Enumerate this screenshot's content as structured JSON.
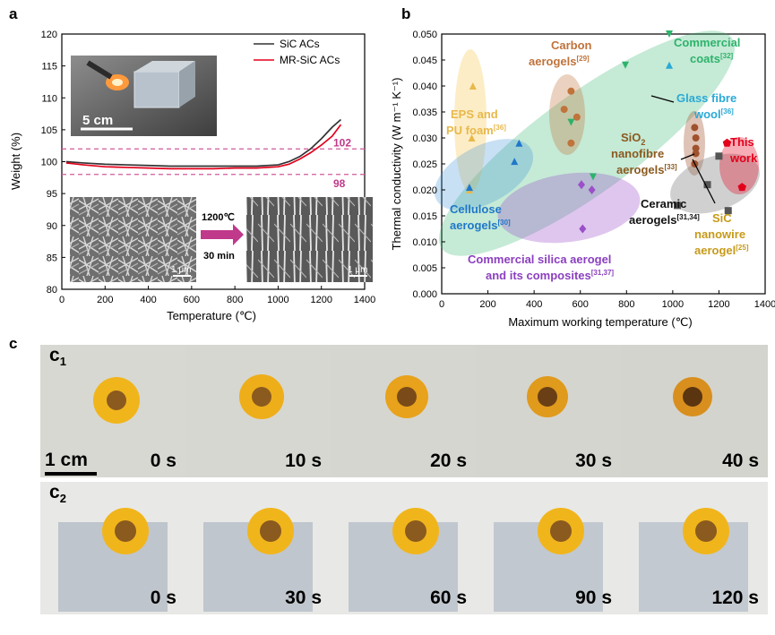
{
  "panels": {
    "a": "a",
    "b": "b",
    "c": "c"
  },
  "panel_a": {
    "ylabel": "Weight (%)",
    "xlabel": "Temperature (℃)",
    "legend": [
      "SiC ACs",
      "MR-SiC ACs"
    ],
    "ref_labels": [
      "102",
      "98"
    ],
    "inset_photo_scale": "5 cm",
    "sem_scale_left": "1 μm",
    "sem_scale_right": "1 μm",
    "treatment_line1": "1200℃",
    "treatment_line2": "30 min"
  },
  "panel_b": {
    "ylabel": "Thermal conductivity (W m⁻¹ K⁻¹)",
    "xlabel": "Maximum working temperature (℃)",
    "labels": {
      "carbon1": "Carbon",
      "carbon2": "aerogels",
      "carbon_ref": "[29]",
      "coats1": "Commercial",
      "coats2": "coats",
      "coats_ref": "[32]",
      "glass1": "Glass fibre",
      "glass2": "wool",
      "glass_ref": "[36]",
      "eps1": "EPS and",
      "eps2": "PU foam",
      "eps_ref": "[36]",
      "sio2_1": "SiO",
      "sio2_sub": "2",
      "sio2_2": "nanofibre",
      "sio2_3": "aerogels",
      "sio2_ref": "[33]",
      "this1": "This",
      "this2": "work",
      "cell1": "Cellulose",
      "cell2": "aerogels",
      "cell_ref": "[30]",
      "cer1": "Ceramic",
      "cer2": "aerogels",
      "cer_ref": "[31,34]",
      "sic1": "SiC",
      "sic2": "nanowire",
      "sic3": "aerogel",
      "sic_ref": "[25]",
      "silica1": "Commercial silica aerogel",
      "silica2": "and its composites",
      "silica_ref": "[31,37]"
    }
  },
  "panel_c": {
    "row1_label": "c",
    "row1_sub": "1",
    "row2_label": "c",
    "row2_sub": "2",
    "scale_bar": "1 cm",
    "row1_times": [
      "0 s",
      "10 s",
      "20 s",
      "30 s",
      "40 s"
    ],
    "row2_times": [
      "0 s",
      "30 s",
      "60 s",
      "90 s",
      "120 s"
    ]
  },
  "chart_data": [
    {
      "type": "line",
      "x": [
        20,
        100,
        200,
        300,
        400,
        500,
        600,
        700,
        800,
        900,
        1000,
        1050,
        1100,
        1150,
        1200,
        1250,
        1290
      ],
      "series": [
        {
          "name": "SiC ACs",
          "color": "#333333",
          "values": [
            100.0,
            99.8,
            99.6,
            99.5,
            99.4,
            99.3,
            99.3,
            99.3,
            99.3,
            99.3,
            99.5,
            100.0,
            100.8,
            102.0,
            103.6,
            105.4,
            106.6
          ]
        },
        {
          "name": "MR-SiC ACs",
          "color": "#e3001b",
          "values": [
            99.8,
            99.5,
            99.2,
            99.1,
            99.0,
            98.9,
            98.9,
            98.9,
            99.0,
            99.0,
            99.2,
            99.6,
            100.4,
            101.4,
            102.6,
            104.0,
            105.8
          ]
        }
      ],
      "reference_lines": [
        102,
        98
      ],
      "xlim": [
        0,
        1400
      ],
      "ylim": [
        80,
        120
      ],
      "xticks": [
        0,
        200,
        400,
        600,
        800,
        1000,
        1200,
        1400
      ],
      "yticks": [
        80,
        85,
        90,
        95,
        100,
        105,
        110,
        115,
        120
      ],
      "xlabel": "Temperature (℃)",
      "ylabel": "Weight (%)",
      "legend_position": "top-right"
    },
    {
      "type": "scatter",
      "xlim": [
        0,
        1400
      ],
      "ylim": [
        0,
        0.05
      ],
      "xticks": [
        0,
        200,
        400,
        600,
        800,
        1000,
        1200,
        1400
      ],
      "yticks": [
        0.0,
        0.005,
        0.01,
        0.015,
        0.02,
        0.025,
        0.03,
        0.035,
        0.04,
        0.045,
        0.05
      ],
      "xlabel": "Maximum working temperature (℃)",
      "ylabel": "Thermal conductivity (W m⁻¹ K⁻¹)",
      "groups": [
        {
          "name": "EPS and PU foam",
          "color": "#e8b84b",
          "marker": "triangle-up",
          "points": [
            [
              135,
              0.04
            ],
            [
              130,
              0.03
            ],
            [
              120,
              0.02
            ]
          ]
        },
        {
          "name": "Cellulose aerogels",
          "color": "#1f77c9",
          "marker": "triangle-up",
          "points": [
            [
              120,
              0.0205
            ],
            [
              315,
              0.0255
            ],
            [
              335,
              0.029
            ]
          ]
        },
        {
          "name": "Carbon aerogels",
          "color": "#c0733a",
          "marker": "circle",
          "points": [
            [
              530,
              0.0355
            ],
            [
              560,
              0.039
            ],
            [
              585,
              0.034
            ],
            [
              560,
              0.029
            ]
          ]
        },
        {
          "name": "Commercial coats",
          "color": "#2db36b",
          "marker": "triangle-down",
          "points": [
            [
              560,
              0.033
            ],
            [
              655,
              0.0225
            ],
            [
              795,
              0.044
            ],
            [
              985,
              0.05
            ]
          ]
        },
        {
          "name": "Glass fibre wool",
          "color": "#2aa9d6",
          "marker": "triangle-up",
          "points": [
            [
              985,
              0.044
            ]
          ]
        },
        {
          "name": "SiO2 nanofibre aerogels",
          "color": "#a0522d",
          "marker": "circle",
          "points": [
            [
              1095,
              0.032
            ],
            [
              1100,
              0.03
            ],
            [
              1100,
              0.028
            ],
            [
              1100,
              0.027
            ],
            [
              1095,
              0.025
            ]
          ]
        },
        {
          "name": "Commercial silica aerogel and its composites",
          "color": "#9b4fc9",
          "marker": "diamond",
          "points": [
            [
              605,
              0.021
            ],
            [
              650,
              0.02
            ],
            [
              610,
              0.0125
            ]
          ]
        },
        {
          "name": "Ceramic aerogels",
          "color": "#555555",
          "marker": "square",
          "points": [
            [
              1020,
              0.017
            ],
            [
              1150,
              0.021
            ],
            [
              1200,
              0.0265
            ],
            [
              1240,
              0.016
            ]
          ]
        },
        {
          "name": "This work",
          "color": "#e3001b",
          "marker": "pentagon",
          "points": [
            [
              1235,
              0.029
            ],
            [
              1300,
              0.0205
            ]
          ]
        }
      ]
    }
  ]
}
